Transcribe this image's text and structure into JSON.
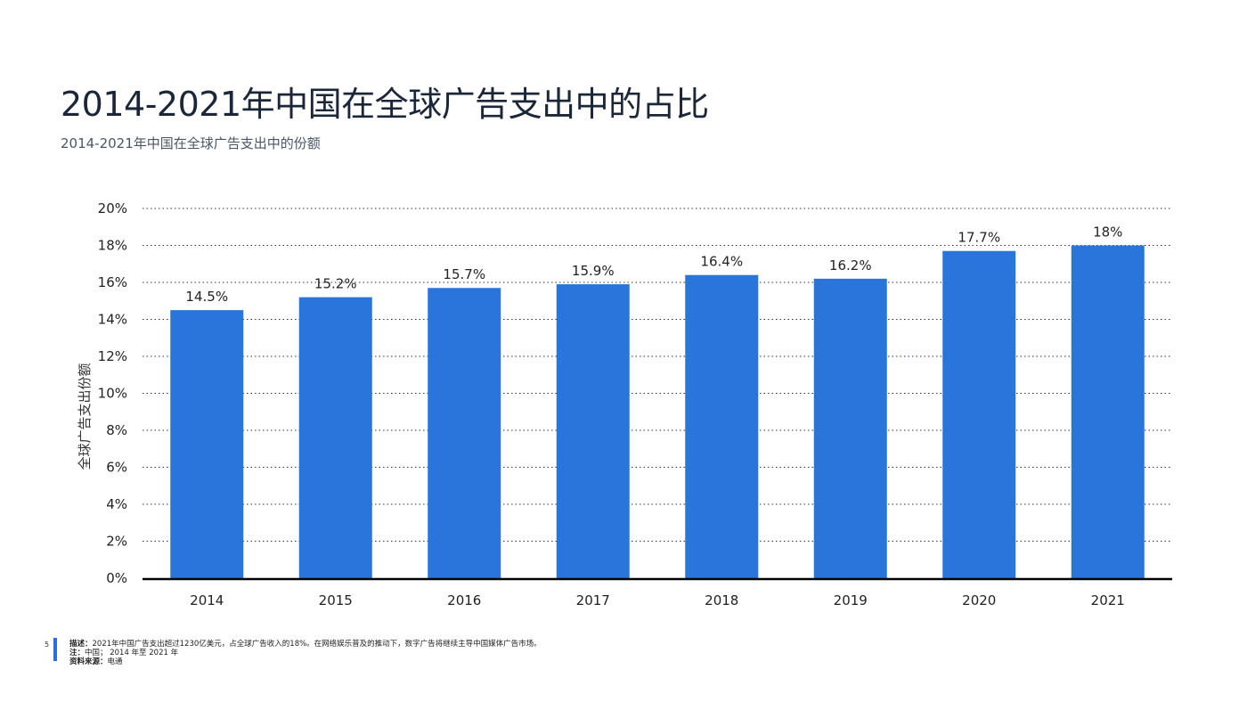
{
  "title": "2014-2021年中国在全球广告支出中的占比",
  "subtitle": "2014-2021年中国在全球广告支出中的份额",
  "chart_data": {
    "type": "bar",
    "categories": [
      "2014",
      "2015",
      "2016",
      "2017",
      "2018",
      "2019",
      "2020",
      "2021"
    ],
    "values": [
      14.5,
      15.2,
      15.7,
      15.9,
      16.4,
      16.2,
      17.7,
      18
    ],
    "data_labels": [
      "14.5%",
      "15.2%",
      "15.7%",
      "15.9%",
      "16.4%",
      "16.2%",
      "17.7%",
      "18%"
    ],
    "ylabel": "全球广告支出份额",
    "xlabel": "",
    "ylim": [
      0,
      20
    ],
    "yticks": [
      "0%",
      "2%",
      "4%",
      "6%",
      "8%",
      "10%",
      "12%",
      "14%",
      "16%",
      "18%",
      "20%"
    ],
    "grid": true,
    "bar_color": "#2a75db"
  },
  "footer": {
    "page_number": "5",
    "desc_label": "描述：",
    "desc_text": "2021年中国广告支出超过1230亿美元，占全球广告收入的18%。在网络娱乐普及的推动下，数字广告将继续主导中国媒体广告市场。",
    "note_label": "注：",
    "note_text": "中国； 2014 年至 2021 年",
    "source_label": "资料来源：",
    "source_text": "电通"
  }
}
